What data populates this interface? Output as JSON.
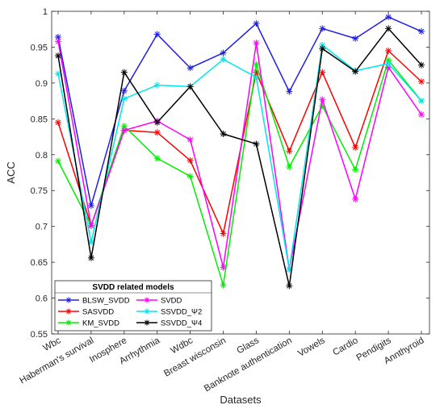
{
  "chart_data": {
    "type": "line",
    "xlabel": "Datasets",
    "ylabel": "ACC",
    "ylim": [
      0.55,
      1.0
    ],
    "yticks": [
      0.55,
      0.6,
      0.65,
      0.7,
      0.75,
      0.8,
      0.85,
      0.9,
      0.95,
      1.0
    ],
    "ytick_labels": [
      "0.55",
      "0.6",
      "0.65",
      "0.7",
      "0.75",
      "0.8",
      "0.85",
      "0.9",
      "0.95",
      "1"
    ],
    "categories": [
      "Wbc",
      "Haberman's survival",
      "Inosphere",
      "Arrhythmia",
      "Wdbc",
      "Breast wisconsin",
      "Glass",
      "Banknote authentication",
      "Vowels",
      "Cardio",
      "Pendigits",
      "Annthyroid"
    ],
    "grid": false,
    "legend": {
      "title": "SVDD related models",
      "placement": "bottom-left",
      "columns": 2
    },
    "series": [
      {
        "name": "BLSW_SVDD",
        "color": "#1f1fe6",
        "values": [
          0.964,
          0.729,
          0.889,
          0.968,
          0.921,
          0.942,
          0.983,
          0.888,
          0.976,
          0.962,
          0.992,
          0.972
        ]
      },
      {
        "name": "SVDD",
        "color": "#ff00ff",
        "values": [
          0.958,
          0.701,
          0.834,
          0.847,
          0.821,
          0.643,
          0.956,
          0.64,
          0.877,
          0.738,
          0.922,
          0.856
        ]
      },
      {
        "name": "SASVDD",
        "color": "#ff0000",
        "values": [
          0.845,
          0.701,
          0.834,
          0.831,
          0.792,
          0.69,
          0.915,
          0.805,
          0.915,
          0.81,
          0.945,
          0.902
        ]
      },
      {
        "name": "SSVDD_Ψ2",
        "color": "#00e5ee",
        "values": [
          0.913,
          0.678,
          0.878,
          0.897,
          0.895,
          0.933,
          0.908,
          0.64,
          0.953,
          0.917,
          0.927,
          0.875
        ]
      },
      {
        "name": "KM_SVDD",
        "color": "#00ee00",
        "values": [
          0.791,
          0.701,
          0.84,
          0.795,
          0.77,
          0.618,
          0.926,
          0.783,
          0.868,
          0.779,
          0.932,
          0.875
        ]
      },
      {
        "name": "SSVDD_Ψ4",
        "color": "#000000",
        "values": [
          0.938,
          0.656,
          0.915,
          0.845,
          0.895,
          0.829,
          0.815,
          0.617,
          0.948,
          0.916,
          0.976,
          0.925
        ]
      }
    ]
  }
}
